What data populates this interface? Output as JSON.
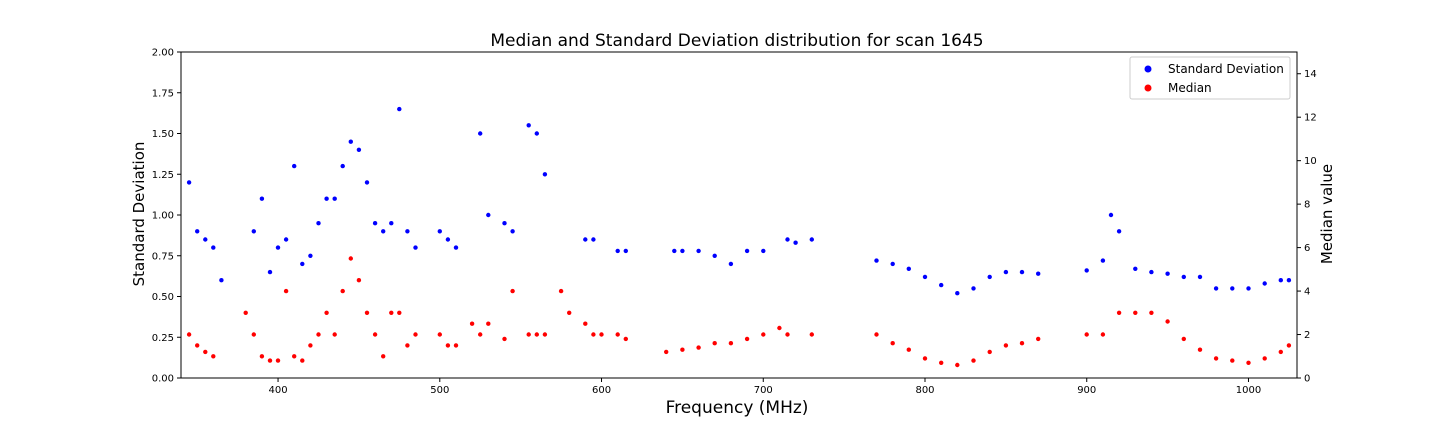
{
  "chart_data": {
    "type": "scatter",
    "title": "Median and Standard Deviation distribution for scan 1645",
    "xlabel": "Frequency (MHz)",
    "ylabel_left": "Standard Deviation",
    "ylabel_right": "Median value",
    "xlim": [
      340,
      1030
    ],
    "ylim_left": [
      0,
      2.0
    ],
    "ylim_right": [
      0,
      15
    ],
    "x_ticks": [
      400,
      500,
      600,
      700,
      800,
      900,
      1000
    ],
    "y_left_ticks": [
      "0.00",
      "0.25",
      "0.50",
      "0.75",
      "1.00",
      "1.25",
      "1.50",
      "1.75",
      "2.00"
    ],
    "y_right_ticks": [
      "0",
      "2",
      "4",
      "6",
      "8",
      "10",
      "12",
      "14"
    ],
    "legend_position": "top-right",
    "grid": false,
    "series": [
      {
        "name": "Standard Deviation",
        "axis": "left",
        "color": "#0000ff",
        "x": [
          345,
          350,
          355,
          360,
          365,
          385,
          390,
          395,
          400,
          405,
          410,
          415,
          420,
          425,
          430,
          435,
          440,
          445,
          450,
          455,
          460,
          465,
          470,
          475,
          480,
          485,
          500,
          505,
          510,
          525,
          530,
          540,
          545,
          555,
          560,
          565,
          590,
          595,
          610,
          615,
          645,
          650,
          660,
          670,
          680,
          690,
          700,
          715,
          720,
          730,
          770,
          780,
          790,
          800,
          810,
          820,
          830,
          840,
          850,
          860,
          870,
          900,
          910,
          915,
          920,
          930,
          940,
          950,
          960,
          970,
          980,
          990,
          1000,
          1010,
          1020,
          1025
        ],
        "y": [
          1.2,
          0.9,
          0.85,
          0.8,
          0.6,
          0.9,
          1.1,
          0.65,
          0.8,
          0.85,
          1.3,
          0.7,
          0.75,
          0.95,
          1.1,
          1.1,
          1.3,
          1.45,
          1.4,
          1.2,
          0.95,
          0.9,
          0.95,
          1.65,
          0.9,
          0.8,
          0.9,
          0.85,
          0.8,
          1.5,
          1.0,
          0.95,
          0.9,
          1.55,
          1.5,
          1.25,
          0.85,
          0.85,
          0.78,
          0.78,
          0.78,
          0.78,
          0.78,
          0.75,
          0.7,
          0.78,
          0.78,
          0.85,
          0.83,
          0.85,
          0.72,
          0.7,
          0.67,
          0.62,
          0.57,
          0.52,
          0.55,
          0.62,
          0.65,
          0.65,
          0.64,
          0.66,
          0.72,
          1.0,
          0.9,
          0.67,
          0.65,
          0.64,
          0.62,
          0.62,
          0.55,
          0.55,
          0.55,
          0.58,
          0.6,
          0.6
        ]
      },
      {
        "name": "Median",
        "axis": "right",
        "color": "#ff0000",
        "x": [
          345,
          350,
          355,
          360,
          380,
          385,
          390,
          395,
          400,
          405,
          410,
          415,
          420,
          425,
          430,
          435,
          440,
          445,
          450,
          455,
          460,
          465,
          470,
          475,
          480,
          485,
          500,
          505,
          510,
          520,
          525,
          530,
          540,
          545,
          555,
          560,
          565,
          575,
          580,
          590,
          595,
          600,
          610,
          615,
          640,
          650,
          660,
          670,
          680,
          690,
          700,
          710,
          715,
          730,
          770,
          780,
          790,
          800,
          810,
          820,
          830,
          840,
          850,
          860,
          870,
          900,
          910,
          920,
          930,
          940,
          950,
          960,
          970,
          980,
          990,
          1000,
          1010,
          1020,
          1025
        ],
        "y": [
          2.0,
          1.5,
          1.2,
          1.0,
          3.0,
          2.0,
          1.0,
          0.8,
          0.8,
          4.0,
          1.0,
          0.8,
          1.5,
          2.0,
          3.0,
          2.0,
          4.0,
          5.5,
          4.5,
          3.0,
          2.0,
          1.0,
          3.0,
          3.0,
          1.5,
          2.0,
          2.0,
          1.5,
          1.5,
          2.5,
          2.0,
          2.5,
          1.8,
          4.0,
          2.0,
          2.0,
          2.0,
          4.0,
          3.0,
          2.5,
          2.0,
          2.0,
          2.0,
          1.8,
          1.2,
          1.3,
          1.4,
          1.6,
          1.6,
          1.8,
          2.0,
          2.3,
          2.0,
          2.0,
          2.0,
          1.6,
          1.3,
          0.9,
          0.7,
          0.6,
          0.8,
          1.2,
          1.5,
          1.6,
          1.8,
          2.0,
          2.0,
          3.0,
          3.0,
          3.0,
          2.6,
          1.8,
          1.3,
          0.9,
          0.8,
          0.7,
          0.9,
          1.2,
          1.5
        ]
      }
    ]
  }
}
